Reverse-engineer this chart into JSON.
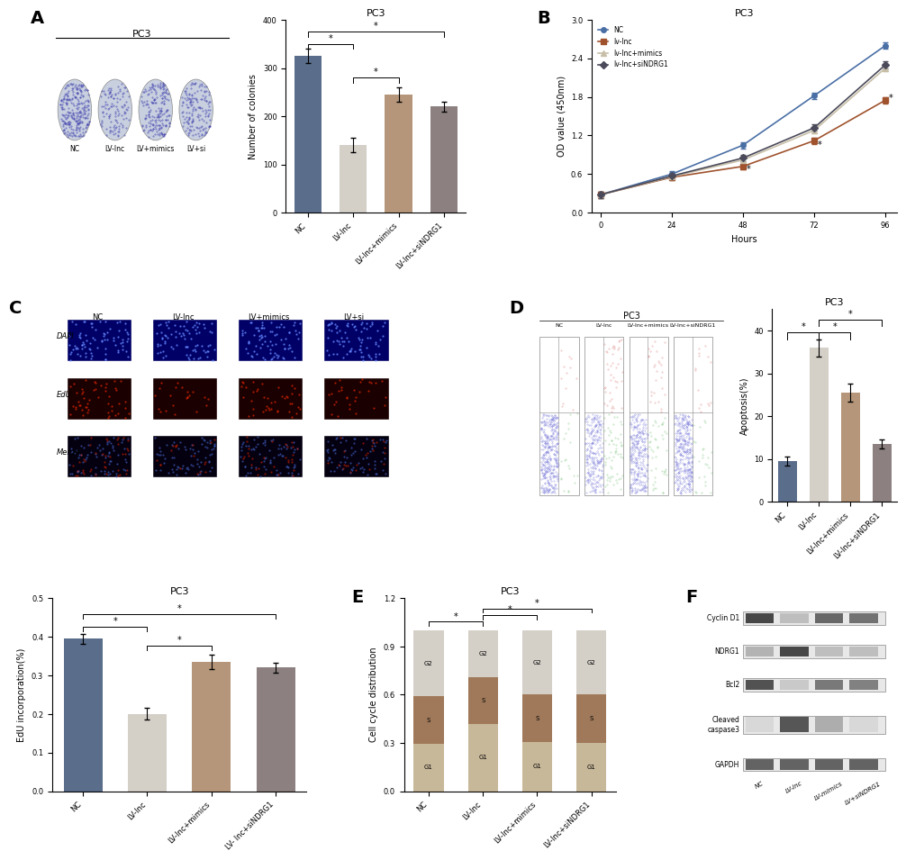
{
  "panel_A_bar": {
    "categories": [
      "NC",
      "LV-Inc",
      "LV-Inc+mimics",
      "LV-Inc+siNDRG1"
    ],
    "values": [
      325,
      140,
      245,
      220
    ],
    "errors": [
      15,
      15,
      15,
      10
    ],
    "colors": [
      "#5a6e8c",
      "#d4cfc7",
      "#b5967a",
      "#8c8080"
    ],
    "title": "PC3",
    "ylabel": "Number of colonies",
    "ylim": [
      0,
      400
    ],
    "yticks": [
      0,
      100,
      200,
      300,
      400
    ]
  },
  "panel_B": {
    "title": "PC3",
    "xlabel": "Hours",
    "ylabel": "OD value (450nm)",
    "ylim": [
      0.0,
      3.0
    ],
    "yticks": [
      0.0,
      0.6,
      1.2,
      1.8,
      2.4,
      3.0
    ],
    "xticks": [
      0,
      24,
      48,
      72,
      96
    ],
    "series": {
      "NC": {
        "x": [
          0,
          24,
          48,
          72,
          96
        ],
        "y": [
          0.28,
          0.6,
          1.05,
          1.82,
          2.6
        ],
        "color": "#4a6fa5",
        "marker": "o",
        "linestyle": "-"
      },
      "lv-lnc": {
        "x": [
          0,
          24,
          48,
          72,
          96
        ],
        "y": [
          0.28,
          0.55,
          0.72,
          1.12,
          1.75
        ],
        "color": "#a0522d",
        "marker": "s",
        "linestyle": "-"
      },
      "lv-lnc+mimics": {
        "x": [
          0,
          24,
          48,
          72,
          96
        ],
        "y": [
          0.28,
          0.56,
          0.82,
          1.28,
          2.25
        ],
        "color": "#c8bfa8",
        "marker": "^",
        "linestyle": "-"
      },
      "lv-lnc+siNDRG1": {
        "x": [
          0,
          24,
          48,
          72,
          96
        ],
        "y": [
          0.28,
          0.57,
          0.85,
          1.32,
          2.3
        ],
        "color": "#4a4a5a",
        "marker": "D",
        "linestyle": "-"
      }
    },
    "legend_labels": [
      "NC",
      "lv-lnc",
      "lv-lnc+mimics",
      "lv-lnc+siNDRG1"
    ],
    "legend_colors": [
      "#4a6fa5",
      "#a0522d",
      "#c8bfa8",
      "#4a4a5a"
    ]
  },
  "panel_C_bar": {
    "categories": [
      "NC",
      "LV-Inc",
      "LV-Inc+mimics",
      "LV- Inc+siNDRG1"
    ],
    "values": [
      0.395,
      0.2,
      0.335,
      0.32
    ],
    "errors": [
      0.012,
      0.015,
      0.018,
      0.012
    ],
    "colors": [
      "#5a6e8c",
      "#d4cfc7",
      "#b5967a",
      "#8c8080"
    ],
    "title": "PC3",
    "ylabel": "EdU incorporation(%)",
    "ylim": [
      0.0,
      0.5
    ],
    "yticks": [
      0.0,
      0.1,
      0.2,
      0.3,
      0.4,
      0.5
    ]
  },
  "panel_D_bar": {
    "categories": [
      "NC",
      "LV-Inc",
      "LV-Inc+mimics",
      "LV-Inc+siNDRG1"
    ],
    "values": [
      9.5,
      36.0,
      25.5,
      13.5
    ],
    "errors": [
      1.0,
      2.0,
      2.0,
      1.0
    ],
    "colors": [
      "#5a6e8c",
      "#d4cfc7",
      "#b5967a",
      "#8c8080"
    ],
    "title": "PC3",
    "ylabel": "Apoptosis(%)",
    "ylim": [
      0,
      45
    ],
    "yticks": [
      0,
      10,
      20,
      30,
      40
    ]
  },
  "panel_E_bar": {
    "categories": [
      "NC",
      "LV-Inc",
      "LV-Inc+mimics",
      "LV-Inc+siNDRG1"
    ],
    "G1": [
      0.295,
      0.42,
      0.305,
      0.3
    ],
    "S": [
      0.295,
      0.29,
      0.295,
      0.3
    ],
    "G2": [
      0.41,
      0.29,
      0.4,
      0.4
    ],
    "colors": {
      "G1": "#c8b89a",
      "S": "#a0795a",
      "G2": "#d4cfc7"
    },
    "title": "PC3",
    "ylabel": "Cell cycle distribution",
    "ylim": [
      0,
      1.2
    ],
    "yticks": [
      0.0,
      0.3,
      0.6,
      0.9,
      1.2
    ]
  },
  "layout": {
    "fig_width": 10.2,
    "fig_height": 9.31,
    "background_color": "#ffffff"
  }
}
